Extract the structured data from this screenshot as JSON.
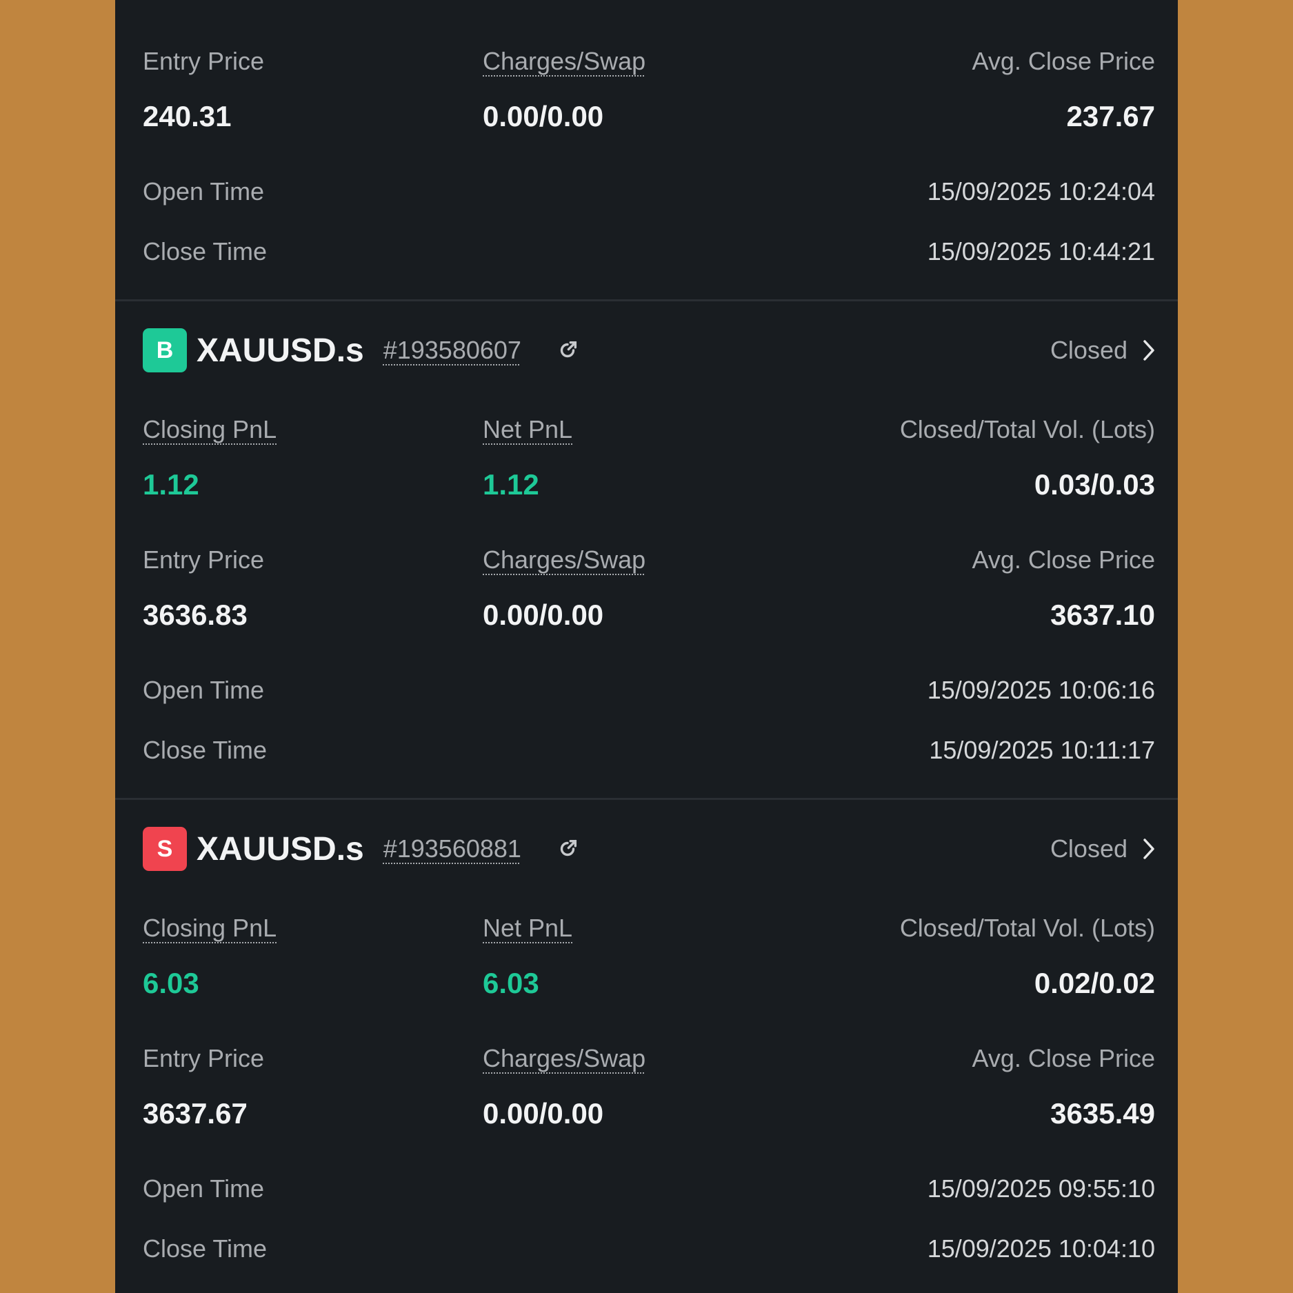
{
  "colors": {
    "background": "#c0853f",
    "panel": "#181c20",
    "buy": "#1ec997",
    "sell": "#f0444f",
    "profit": "#1ec997"
  },
  "labels": {
    "closing_pnl": "Closing PnL",
    "net_pnl": "Net PnL",
    "volume": "Closed/Total Vol. (Lots)",
    "entry_price": "Entry Price",
    "charges_swap": "Charges/Swap",
    "avg_close_price": "Avg. Close Price",
    "open_time": "Open Time",
    "close_time": "Close Time"
  },
  "partial_trade": {
    "entry_price": "240.31",
    "charges_swap": "0.00/0.00",
    "avg_close_price": "237.67",
    "open_time": "15/09/2025 10:24:04",
    "close_time": "15/09/2025 10:44:21"
  },
  "trades": [
    {
      "side": "B",
      "side_icon": "buy-badge",
      "symbol": "XAUUSD.s",
      "ticket": "#193580607",
      "status": "Closed",
      "closing_pnl": "1.12",
      "net_pnl": "1.12",
      "volume": "0.03/0.03",
      "entry_price": "3636.83",
      "charges_swap": "0.00/0.00",
      "avg_close_price": "3637.10",
      "open_time": "15/09/2025 10:06:16",
      "close_time": "15/09/2025 10:11:17"
    },
    {
      "side": "S",
      "side_icon": "sell-badge",
      "symbol": "XAUUSD.s",
      "ticket": "#193560881",
      "status": "Closed",
      "closing_pnl": "6.03",
      "net_pnl": "6.03",
      "volume": "0.02/0.02",
      "entry_price": "3637.67",
      "charges_swap": "0.00/0.00",
      "avg_close_price": "3635.49",
      "open_time": "15/09/2025 09:55:10",
      "close_time": "15/09/2025 10:04:10"
    }
  ]
}
